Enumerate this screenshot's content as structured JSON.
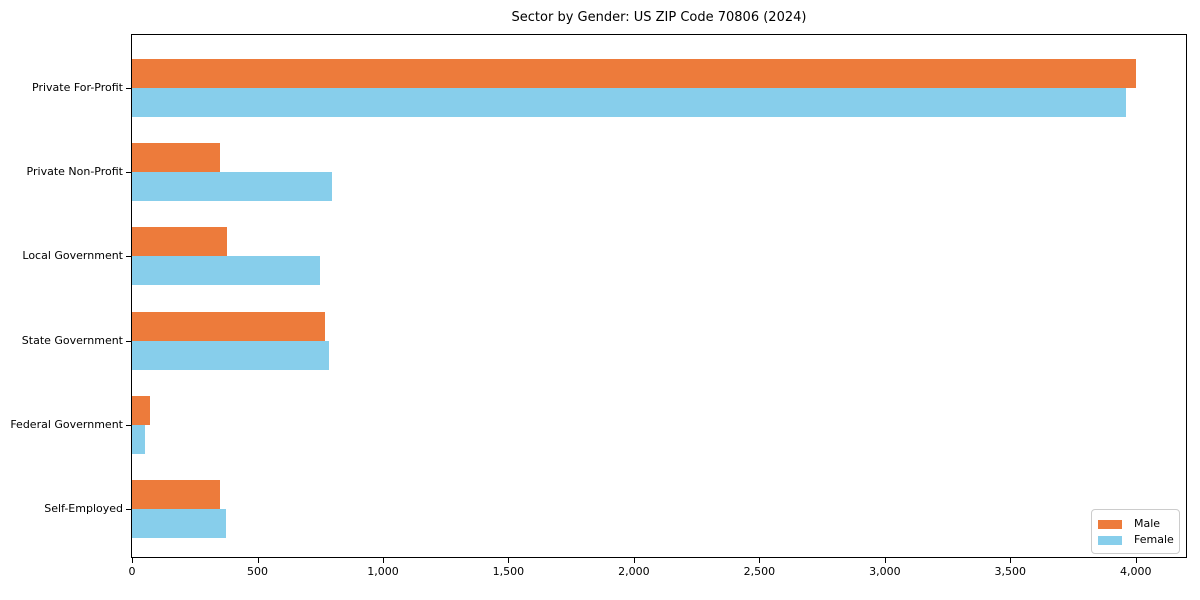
{
  "chart_data": {
    "type": "bar",
    "orientation": "horizontal",
    "title": "Sector by Gender: US ZIP Code 70806 (2024)",
    "categories": [
      "Private For-Profit",
      "Private Non-Profit",
      "Local Government",
      "State Government",
      "Federal Government",
      "Self-Employed"
    ],
    "series": [
      {
        "name": "Male",
        "color": "#ed7b3b",
        "values": [
          4000,
          350,
          380,
          770,
          70,
          350
        ]
      },
      {
        "name": "Female",
        "color": "#87ceeb",
        "values": [
          3960,
          795,
          750,
          785,
          50,
          375
        ]
      }
    ],
    "xlabel": "",
    "ylabel": "",
    "xlim": [
      0,
      4200
    ],
    "xtick_values": [
      0,
      500,
      1000,
      1500,
      2000,
      2500,
      3000,
      3500,
      4000
    ],
    "xtick_labels": [
      "0",
      "500",
      "1,000",
      "1,500",
      "2,000",
      "2,500",
      "3,000",
      "3,500",
      "4,000"
    ],
    "grid": false,
    "legend": {
      "position": "lower right"
    },
    "colors": {
      "spine": "#000000",
      "background": "#ffffff"
    }
  }
}
